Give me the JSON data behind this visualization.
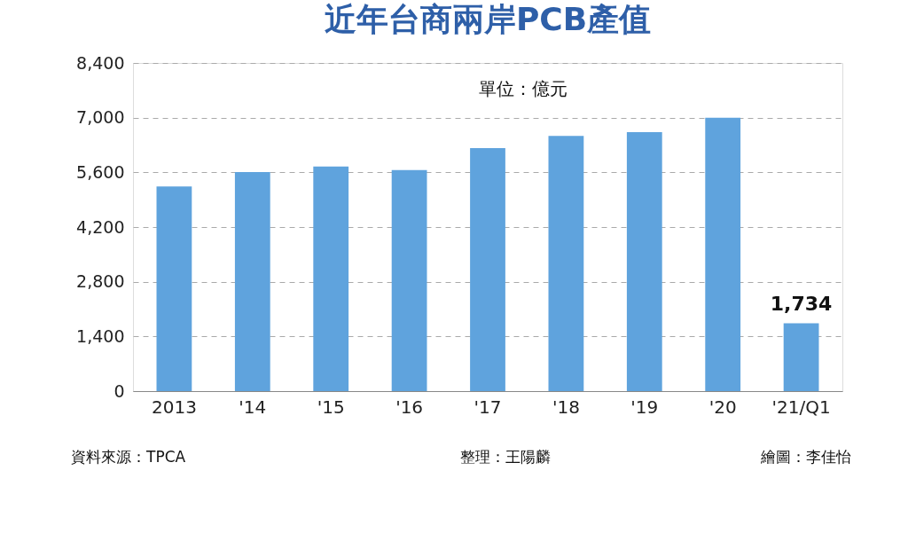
{
  "chart_data": {
    "type": "bar",
    "title": "近年台商兩岸PCB產值",
    "categories": [
      "2013",
      "'14",
      "'15",
      "'16",
      "'17",
      "'18",
      "'19",
      "'20",
      "'21/Q1"
    ],
    "values": [
      5240,
      5610,
      5750,
      5660,
      6220,
      6530,
      6630,
      7000,
      1734
    ],
    "value_labels": [
      null,
      null,
      null,
      null,
      null,
      null,
      null,
      null,
      "1,734"
    ],
    "color": "#5fa3dd",
    "ylim": [
      0,
      8400
    ],
    "yticks": [
      0,
      {
        "value": 1400,
        "label": "1,400"
      },
      {
        "value": 2800,
        "label": "2,800"
      },
      {
        "value": 4200,
        "label": "4,200"
      },
      {
        "value": 5600,
        "label": "5,600"
      },
      {
        "value": 7000,
        "label": "7,000"
      },
      {
        "value": 8400,
        "label": "8,400"
      }
    ],
    "grid": "y",
    "annotations": [
      "單位：億元",
      "資料來源：TPCA",
      "整理：王陽麟",
      "繪圖：李佳怡"
    ]
  }
}
